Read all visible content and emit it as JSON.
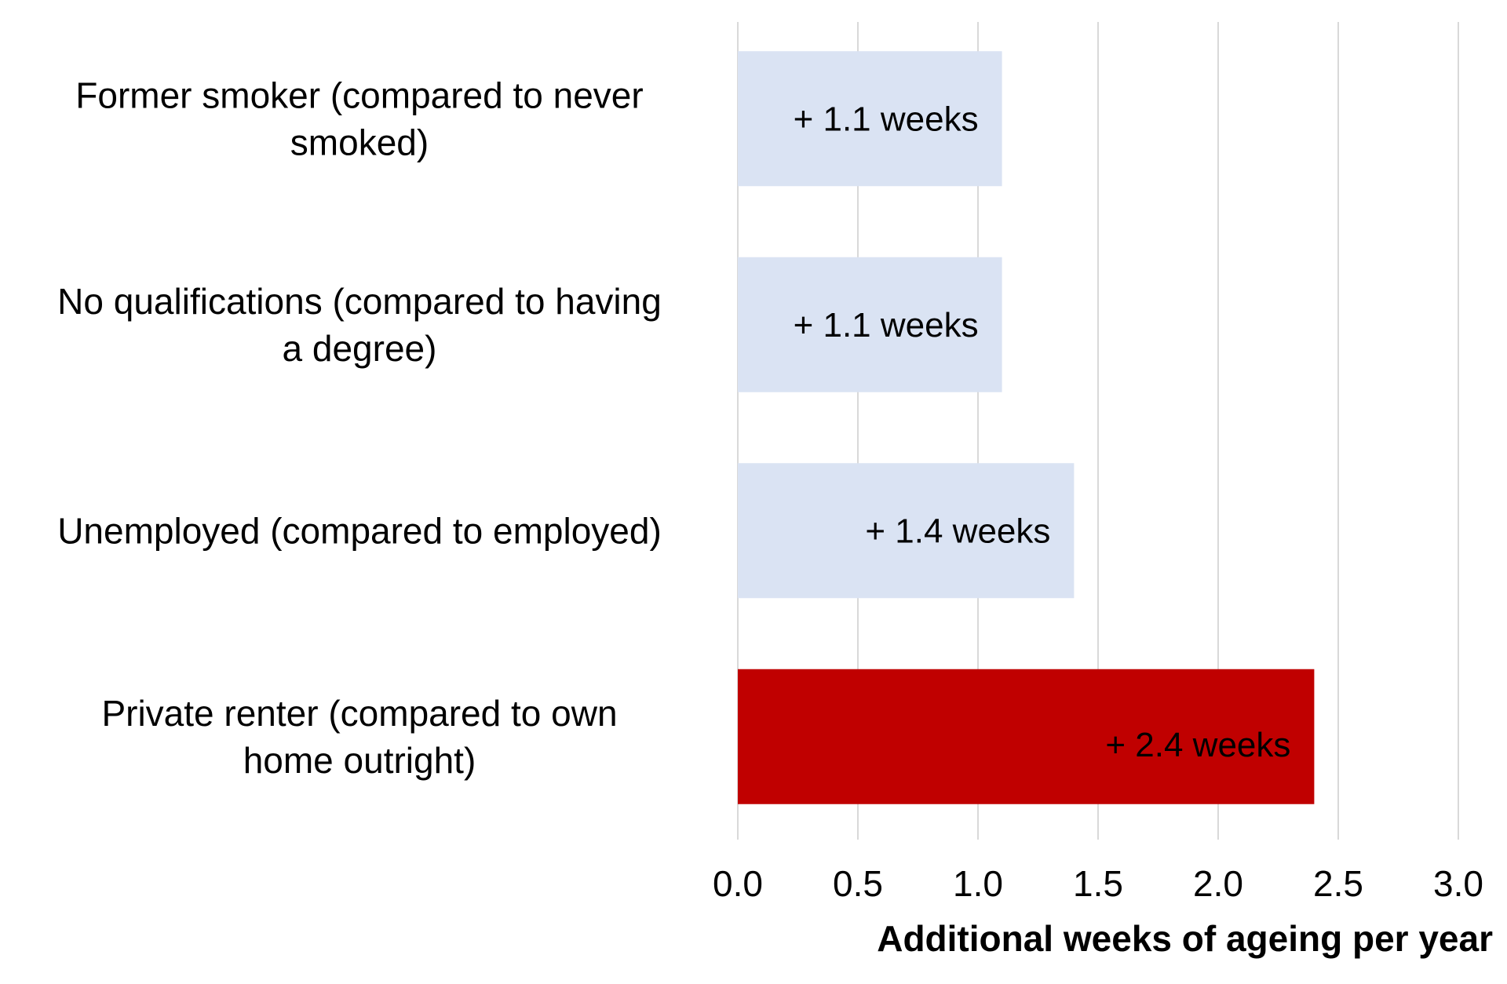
{
  "chart_data": {
    "type": "bar",
    "orientation": "horizontal",
    "categories": [
      [
        "Former smoker (compared to never",
        "smoked)"
      ],
      [
        "No qualifications (compared to having",
        "a degree)"
      ],
      [
        "Unemployed (compared to employed)"
      ],
      [
        "Private renter (compared to own",
        "home outright)"
      ]
    ],
    "values": [
      1.1,
      1.1,
      1.4,
      2.4
    ],
    "data_labels": [
      "+ 1.1 weeks",
      "+ 1.1 weeks",
      "+ 1.4 weeks",
      "+ 2.4 weeks"
    ],
    "bar_colors": [
      "#dae3f3",
      "#dae3f3",
      "#dae3f3",
      "#c00000"
    ],
    "xlabel": "Additional weeks of ageing per year",
    "xlim": [
      0,
      3
    ],
    "xticks": [
      "0.0",
      "0.5",
      "1.0",
      "1.5",
      "2.0",
      "2.5",
      "3.0"
    ],
    "grid": "vertical"
  }
}
